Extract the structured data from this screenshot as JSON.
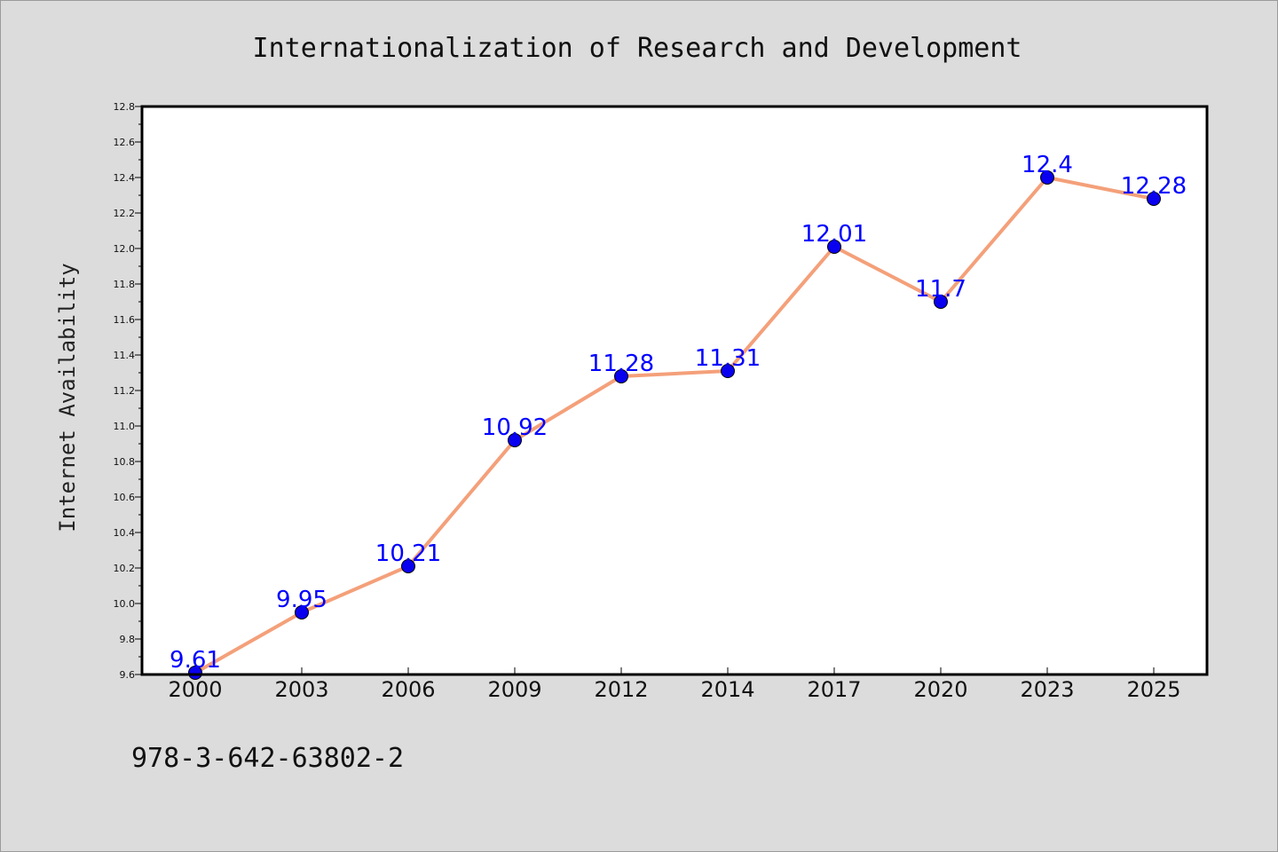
{
  "chart_data": {
    "type": "line",
    "title": "Internationalization of Research and Development",
    "xlabel": "",
    "ylabel": "Internet Availability",
    "categories": [
      "2000",
      "2003",
      "2006",
      "2009",
      "2012",
      "2014",
      "2017",
      "2020",
      "2023",
      "2025"
    ],
    "series": [
      {
        "values": [
          9.61,
          9.95,
          10.21,
          10.92,
          11.28,
          11.31,
          12.01,
          11.7,
          12.4,
          12.28
        ],
        "line_color": "#f4a07a",
        "marker_color": "#0a00f0"
      }
    ],
    "data_labels": [
      "9.61",
      "9.95",
      "10.21",
      "10.92",
      "11.28",
      "11.31",
      "12.01",
      "11.7",
      "12.4",
      "12.28"
    ],
    "ylim": [
      9.6,
      12.8
    ],
    "yticks": [
      "9.6",
      "9.8",
      "10.0",
      "10.2",
      "10.4",
      "10.6",
      "10.8",
      "11.0",
      "11.2",
      "11.4",
      "11.6",
      "11.8",
      "12.0",
      "12.2",
      "12.4",
      "12.6",
      "12.8"
    ],
    "label_color": "#0000ff",
    "grid": false,
    "legend": "none"
  },
  "footnote": "978-3-642-63802-2"
}
